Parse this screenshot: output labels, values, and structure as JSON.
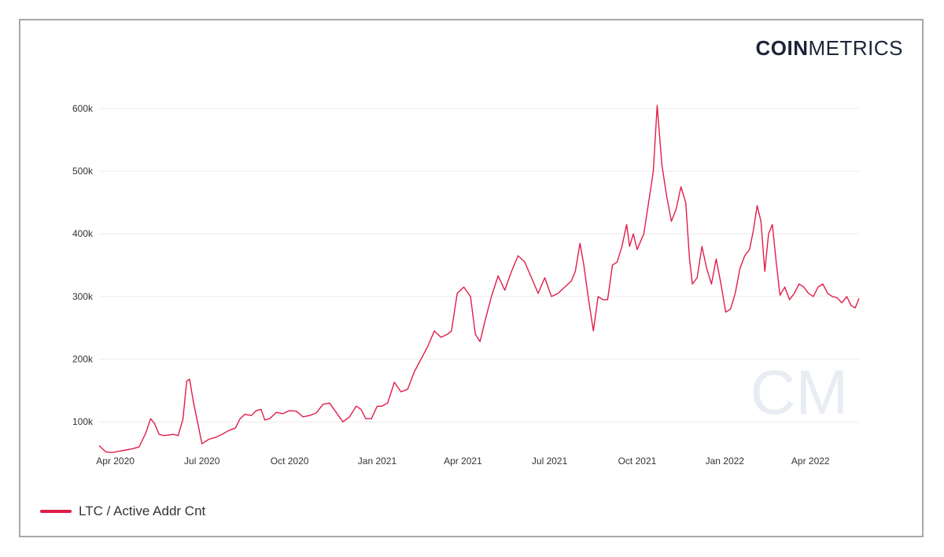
{
  "logo": {
    "bold": "COIN",
    "thin": "METRICS",
    "watermark": "CM"
  },
  "colors": {
    "series": "#e11d48",
    "grid": "#ececec",
    "axis_text": "#333333",
    "watermark": "#e8ecf3"
  },
  "chart_data": {
    "type": "line",
    "title": "",
    "xlabel": "",
    "ylabel": "",
    "x_ticks": [
      {
        "date": "2020-04-01",
        "label": "Apr 2020"
      },
      {
        "date": "2020-07-01",
        "label": "Jul 2020"
      },
      {
        "date": "2020-10-01",
        "label": "Oct 2020"
      },
      {
        "date": "2021-01-01",
        "label": "Jan 2021"
      },
      {
        "date": "2021-04-01",
        "label": "Apr 2021"
      },
      {
        "date": "2021-07-01",
        "label": "Jul 2021"
      },
      {
        "date": "2021-10-01",
        "label": "Oct 2021"
      },
      {
        "date": "2022-01-01",
        "label": "Jan 2022"
      },
      {
        "date": "2022-04-01",
        "label": "Apr 2022"
      }
    ],
    "y_ticks": [
      {
        "value": 100000,
        "label": "100k"
      },
      {
        "value": 200000,
        "label": "200k"
      },
      {
        "value": 300000,
        "label": "300k"
      },
      {
        "value": 400000,
        "label": "400k"
      },
      {
        "value": 500000,
        "label": "500k"
      },
      {
        "value": 600000,
        "label": "600k"
      }
    ],
    "xlim": [
      "2020-03-15",
      "2022-05-22"
    ],
    "ylim": [
      45000,
      615000
    ],
    "grid": true,
    "legend_position": "bottom-left",
    "series": [
      {
        "name": "LTC / Active Addr Cnt",
        "points": [
          [
            "2020-03-15",
            62000
          ],
          [
            "2020-03-22",
            52000
          ],
          [
            "2020-03-29",
            51000
          ],
          [
            "2020-04-05",
            53000
          ],
          [
            "2020-04-12",
            55000
          ],
          [
            "2020-04-19",
            57000
          ],
          [
            "2020-04-26",
            60000
          ],
          [
            "2020-05-03",
            82000
          ],
          [
            "2020-05-08",
            105000
          ],
          [
            "2020-05-12",
            98000
          ],
          [
            "2020-05-17",
            80000
          ],
          [
            "2020-05-22",
            78000
          ],
          [
            "2020-05-27",
            79000
          ],
          [
            "2020-06-01",
            80000
          ],
          [
            "2020-06-06",
            78000
          ],
          [
            "2020-06-11",
            104000
          ],
          [
            "2020-06-15",
            165000
          ],
          [
            "2020-06-18",
            168000
          ],
          [
            "2020-06-22",
            132000
          ],
          [
            "2020-06-27",
            95000
          ],
          [
            "2020-07-01",
            65000
          ],
          [
            "2020-07-08",
            72000
          ],
          [
            "2020-07-15",
            75000
          ],
          [
            "2020-07-22",
            80000
          ],
          [
            "2020-07-29",
            86000
          ],
          [
            "2020-08-05",
            90000
          ],
          [
            "2020-08-10",
            105000
          ],
          [
            "2020-08-15",
            112000
          ],
          [
            "2020-08-22",
            110000
          ],
          [
            "2020-08-27",
            118000
          ],
          [
            "2020-09-01",
            120000
          ],
          [
            "2020-09-05",
            103000
          ],
          [
            "2020-09-10",
            105000
          ],
          [
            "2020-09-17",
            115000
          ],
          [
            "2020-09-24",
            113000
          ],
          [
            "2020-10-01",
            118000
          ],
          [
            "2020-10-08",
            117000
          ],
          [
            "2020-10-15",
            108000
          ],
          [
            "2020-10-22",
            110000
          ],
          [
            "2020-10-29",
            114000
          ],
          [
            "2020-11-05",
            128000
          ],
          [
            "2020-11-12",
            130000
          ],
          [
            "2020-11-19",
            115000
          ],
          [
            "2020-11-26",
            100000
          ],
          [
            "2020-12-03",
            108000
          ],
          [
            "2020-12-10",
            125000
          ],
          [
            "2020-12-15",
            120000
          ],
          [
            "2020-12-20",
            105000
          ],
          [
            "2020-12-26",
            105000
          ],
          [
            "2021-01-01",
            125000
          ],
          [
            "2021-01-06",
            125000
          ],
          [
            "2021-01-12",
            130000
          ],
          [
            "2021-01-19",
            163000
          ],
          [
            "2021-01-26",
            148000
          ],
          [
            "2021-02-02",
            152000
          ],
          [
            "2021-02-09",
            180000
          ],
          [
            "2021-02-16",
            200000
          ],
          [
            "2021-02-23",
            220000
          ],
          [
            "2021-03-02",
            245000
          ],
          [
            "2021-03-09",
            235000
          ],
          [
            "2021-03-16",
            240000
          ],
          [
            "2021-03-20",
            245000
          ],
          [
            "2021-03-26",
            305000
          ],
          [
            "2021-04-02",
            315000
          ],
          [
            "2021-04-09",
            300000
          ],
          [
            "2021-04-14",
            240000
          ],
          [
            "2021-04-19",
            228000
          ],
          [
            "2021-04-24",
            260000
          ],
          [
            "2021-05-01",
            300000
          ],
          [
            "2021-05-08",
            333000
          ],
          [
            "2021-05-15",
            310000
          ],
          [
            "2021-05-22",
            340000
          ],
          [
            "2021-05-29",
            365000
          ],
          [
            "2021-06-05",
            355000
          ],
          [
            "2021-06-12",
            330000
          ],
          [
            "2021-06-19",
            305000
          ],
          [
            "2021-06-26",
            330000
          ],
          [
            "2021-07-03",
            300000
          ],
          [
            "2021-07-10",
            305000
          ],
          [
            "2021-07-17",
            315000
          ],
          [
            "2021-07-24",
            325000
          ],
          [
            "2021-07-28",
            340000
          ],
          [
            "2021-08-02",
            385000
          ],
          [
            "2021-08-06",
            350000
          ],
          [
            "2021-08-11",
            295000
          ],
          [
            "2021-08-16",
            245000
          ],
          [
            "2021-08-21",
            300000
          ],
          [
            "2021-08-26",
            295000
          ],
          [
            "2021-08-31",
            295000
          ],
          [
            "2021-09-05",
            350000
          ],
          [
            "2021-09-10",
            355000
          ],
          [
            "2021-09-15",
            380000
          ],
          [
            "2021-09-20",
            415000
          ],
          [
            "2021-09-23",
            380000
          ],
          [
            "2021-09-27",
            400000
          ],
          [
            "2021-10-01",
            375000
          ],
          [
            "2021-10-08",
            400000
          ],
          [
            "2021-10-13",
            450000
          ],
          [
            "2021-10-18",
            500000
          ],
          [
            "2021-10-22",
            605000
          ],
          [
            "2021-10-27",
            510000
          ],
          [
            "2021-11-01",
            460000
          ],
          [
            "2021-11-06",
            420000
          ],
          [
            "2021-11-11",
            440000
          ],
          [
            "2021-11-16",
            475000
          ],
          [
            "2021-11-21",
            450000
          ],
          [
            "2021-11-25",
            360000
          ],
          [
            "2021-11-28",
            320000
          ],
          [
            "2021-12-03",
            330000
          ],
          [
            "2021-12-08",
            380000
          ],
          [
            "2021-12-13",
            345000
          ],
          [
            "2021-12-18",
            320000
          ],
          [
            "2021-12-23",
            360000
          ],
          [
            "2021-12-28",
            320000
          ],
          [
            "2022-01-02",
            275000
          ],
          [
            "2022-01-07",
            280000
          ],
          [
            "2022-01-12",
            305000
          ],
          [
            "2022-01-17",
            345000
          ],
          [
            "2022-01-22",
            365000
          ],
          [
            "2022-01-27",
            375000
          ],
          [
            "2022-01-31",
            405000
          ],
          [
            "2022-02-04",
            445000
          ],
          [
            "2022-02-08",
            420000
          ],
          [
            "2022-02-12",
            340000
          ],
          [
            "2022-02-16",
            400000
          ],
          [
            "2022-02-20",
            415000
          ],
          [
            "2022-02-24",
            355000
          ],
          [
            "2022-02-28",
            302000
          ],
          [
            "2022-03-05",
            315000
          ],
          [
            "2022-03-10",
            295000
          ],
          [
            "2022-03-15",
            305000
          ],
          [
            "2022-03-20",
            320000
          ],
          [
            "2022-03-25",
            315000
          ],
          [
            "2022-03-30",
            305000
          ],
          [
            "2022-04-04",
            300000
          ],
          [
            "2022-04-09",
            315000
          ],
          [
            "2022-04-14",
            320000
          ],
          [
            "2022-04-19",
            305000
          ],
          [
            "2022-04-24",
            300000
          ],
          [
            "2022-04-29",
            298000
          ],
          [
            "2022-05-04",
            290000
          ],
          [
            "2022-05-09",
            300000
          ],
          [
            "2022-05-14",
            285000
          ],
          [
            "2022-05-18",
            282000
          ],
          [
            "2022-05-22",
            297000
          ]
        ]
      }
    ]
  }
}
